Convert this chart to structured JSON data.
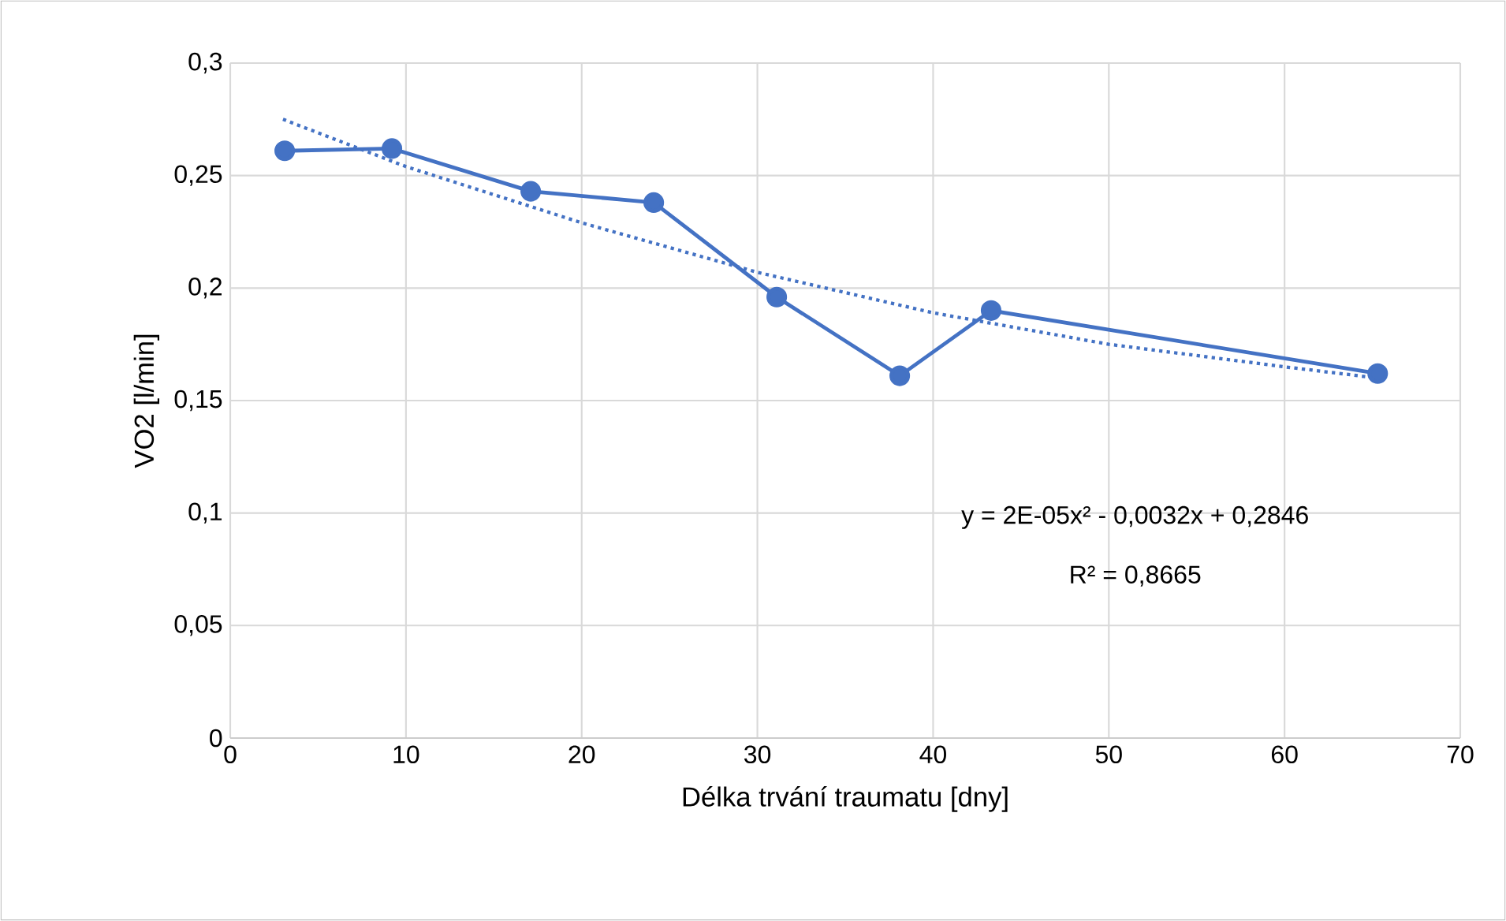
{
  "chart_data": {
    "type": "line",
    "xlabel": "Délka trvání traumatu [dny]",
    "ylabel": "VO2 [l/min]",
    "xlim": [
      0,
      70
    ],
    "xticks": [
      0,
      10,
      20,
      30,
      40,
      50,
      60,
      70
    ],
    "ylim": [
      0,
      0.3
    ],
    "yticks": [
      0,
      {
        "value": 0.05,
        "label": "0,05"
      },
      {
        "value": 0.1,
        "label": "0,1"
      },
      {
        "value": 0.15,
        "label": "0,15"
      },
      {
        "value": 0.2,
        "label": "0,2"
      },
      {
        "value": 0.25,
        "label": "0,25"
      },
      {
        "value": 0.3,
        "label": "0,3"
      }
    ],
    "grid": true,
    "marker": "circle",
    "line_style": "solid",
    "series": [
      {
        "color": "#4472c4",
        "x": [
          3.1,
          9.2,
          17.1,
          24.1,
          31.1,
          38.1,
          43.3,
          65.3
        ],
        "values": [
          0.261,
          0.262,
          0.243,
          0.238,
          0.196,
          0.161,
          0.19,
          0.162
        ]
      },
      {
        "type": "line",
        "color": "#4472c4",
        "marker": "none",
        "line_style": "dotted",
        "x": [
          3,
          10,
          20,
          30,
          40,
          50,
          60,
          65.3
        ],
        "values": [
          0.275,
          0.254,
          0.229,
          0.207,
          0.189,
          0.175,
          0.165,
          0.16
        ]
      }
    ],
    "annotations": [
      "y = 2E-05x² - 0,0032x + 0,2846",
      "R² = 0,8665"
    ]
  }
}
